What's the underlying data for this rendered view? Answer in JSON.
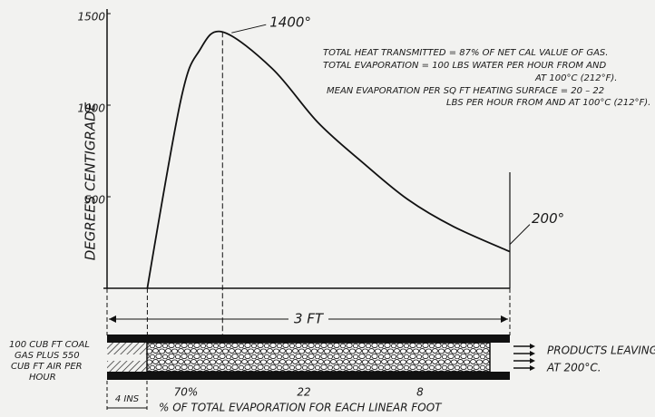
{
  "chart_data": {
    "type": "line",
    "y_label": "DEGREES CENTIGRADE",
    "ylim": [
      0,
      1500
    ],
    "yticks": [
      500,
      1000,
      1500
    ],
    "xlim": [
      0,
      3
    ],
    "x": [
      0.3,
      0.55,
      0.69,
      0.86,
      1.23,
      1.57,
      1.91,
      2.24,
      2.58,
      3.0
    ],
    "values": [
      0,
      1030,
      1300,
      1400,
      1200,
      906,
      683,
      485,
      337,
      200
    ],
    "color": "#111111",
    "annotations": {
      "peak": "1400°",
      "end": "200°"
    },
    "notes": [
      "TOTAL HEAT TRANSMITTED = 87% OF NET CAL VALUE OF GAS.",
      "TOTAL EVAPORATION = 100 LBS WATER PER HOUR FROM AND",
      "AT 100°C (212°F).",
      "MEAN EVAPORATION PER SQ FT HEATING SURFACE = 20 – 22",
      "LBS PER HOUR FROM AND AT 100°C (212°F)."
    ],
    "length_label": "3 FT"
  },
  "diagram": {
    "inlet": [
      "100 CUB FT COAL",
      "GAS PLUS 550",
      "CUB FT AIR PER",
      "HOUR"
    ],
    "outlet": [
      "PRODUCTS LEAVING",
      "AT 200°C."
    ],
    "inlet_length": "4 INS",
    "evaporation_labels": [
      "70%",
      "22",
      "8"
    ],
    "evaporation_caption": "% OF TOTAL EVAPORATION FOR EACH LINEAR FOOT"
  }
}
